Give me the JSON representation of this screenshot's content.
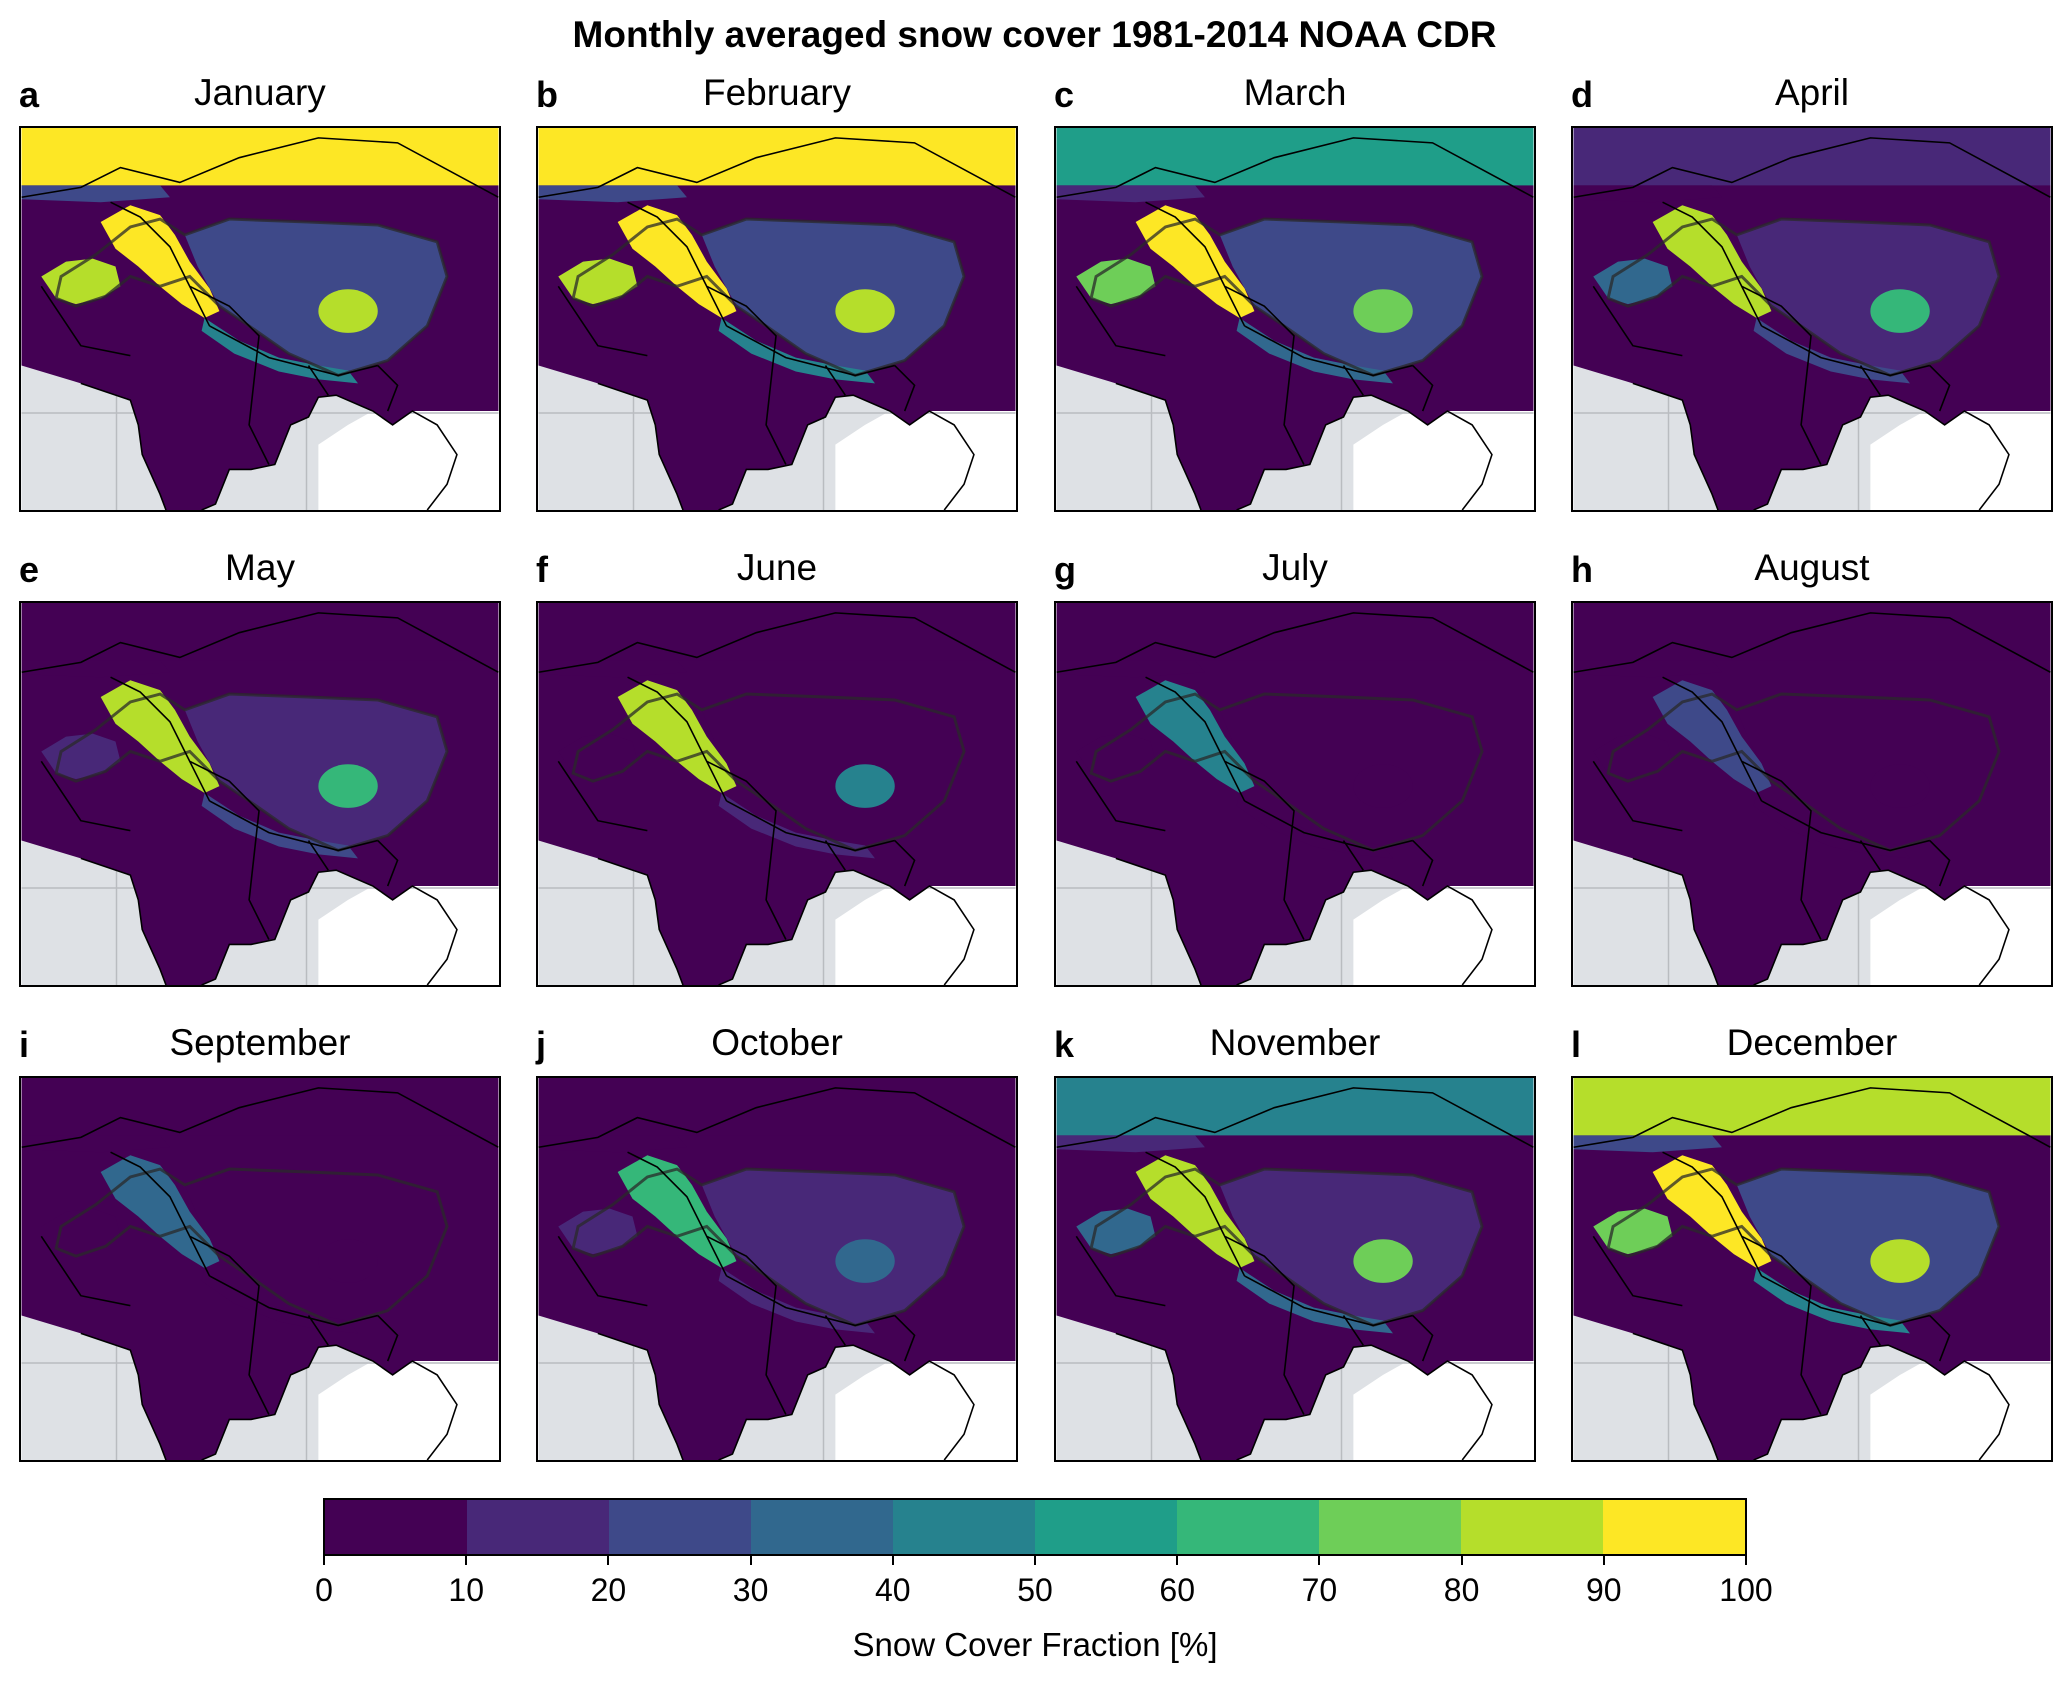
{
  "title": "Monthly averaged snow cover 1981-2014 NOAA CDR",
  "panels": [
    {
      "label": "a",
      "month": "January"
    },
    {
      "label": "b",
      "month": "February"
    },
    {
      "label": "c",
      "month": "March"
    },
    {
      "label": "d",
      "month": "April"
    },
    {
      "label": "e",
      "month": "May"
    },
    {
      "label": "f",
      "month": "June"
    },
    {
      "label": "g",
      "month": "July"
    },
    {
      "label": "h",
      "month": "August"
    },
    {
      "label": "i",
      "month": "September"
    },
    {
      "label": "j",
      "month": "October"
    },
    {
      "label": "k",
      "month": "November"
    },
    {
      "label": "l",
      "month": "December"
    }
  ],
  "colorbar": {
    "label": "Snow Cover Fraction [%]",
    "ticks": [
      "0",
      "10",
      "20",
      "30",
      "40",
      "50",
      "60",
      "70",
      "80",
      "90",
      "100"
    ],
    "colors": [
      "#440154",
      "#482878",
      "#3e4989",
      "#31688e",
      "#26828e",
      "#1f9e89",
      "#35b779",
      "#6ece58",
      "#b5de2b",
      "#fde725"
    ]
  },
  "colors": {
    "background_ocean": "#dee1e5",
    "masked_land": "#ffffff",
    "low_snow": "#440154",
    "high_snow": "#fde725"
  },
  "chart_data": {
    "type": "heatmap",
    "title": "Monthly averaged snow cover 1981-2014 NOAA CDR",
    "colorbar_label": "Snow Cover Fraction [%]",
    "colorbar_range": [
      0,
      100
    ],
    "colorbar_step": 10,
    "panels": [
      {
        "month": "January",
        "regions": {
          "north_band": 92,
          "northwest_lowland": 28,
          "karakoram_himalaya_west": 95,
          "hindu_kush": 82,
          "tibetan_plateau": 22,
          "southeast_tibet": 85,
          "himalaya_arc": 45,
          "south_asia": 2
        }
      },
      {
        "month": "February",
        "regions": {
          "north_band": 92,
          "northwest_lowland": 25,
          "karakoram_himalaya_west": 95,
          "hindu_kush": 85,
          "tibetan_plateau": 22,
          "southeast_tibet": 85,
          "himalaya_arc": 45,
          "south_asia": 2
        }
      },
      {
        "month": "March",
        "regions": {
          "north_band": 55,
          "northwest_lowland": 18,
          "karakoram_himalaya_west": 92,
          "hindu_kush": 70,
          "tibetan_plateau": 20,
          "southeast_tibet": 75,
          "himalaya_arc": 35,
          "south_asia": 2
        }
      },
      {
        "month": "April",
        "regions": {
          "north_band": 15,
          "northwest_lowland": 5,
          "karakoram_himalaya_west": 88,
          "hindu_kush": 30,
          "tibetan_plateau": 15,
          "southeast_tibet": 65,
          "himalaya_arc": 25,
          "south_asia": 2
        }
      },
      {
        "month": "May",
        "regions": {
          "north_band": 5,
          "northwest_lowland": 2,
          "karakoram_himalaya_west": 88,
          "hindu_kush": 15,
          "tibetan_plateau": 12,
          "southeast_tibet": 65,
          "himalaya_arc": 20,
          "south_asia": 1
        }
      },
      {
        "month": "June",
        "regions": {
          "north_band": 2,
          "northwest_lowland": 1,
          "karakoram_himalaya_west": 82,
          "hindu_kush": 8,
          "tibetan_plateau": 5,
          "southeast_tibet": 45,
          "himalaya_arc": 12,
          "south_asia": 1
        }
      },
      {
        "month": "July",
        "regions": {
          "north_band": 1,
          "northwest_lowland": 1,
          "karakoram_himalaya_west": 45,
          "hindu_kush": 5,
          "tibetan_plateau": 3,
          "southeast_tibet": 8,
          "himalaya_arc": 8,
          "south_asia": 1
        }
      },
      {
        "month": "August",
        "regions": {
          "north_band": 1,
          "northwest_lowland": 1,
          "karakoram_himalaya_west": 28,
          "hindu_kush": 3,
          "tibetan_plateau": 2,
          "southeast_tibet": 5,
          "himalaya_arc": 6,
          "south_asia": 1
        }
      },
      {
        "month": "September",
        "regions": {
          "north_band": 1,
          "northwest_lowland": 1,
          "karakoram_himalaya_west": 35,
          "hindu_kush": 5,
          "tibetan_plateau": 3,
          "southeast_tibet": 5,
          "himalaya_arc": 8,
          "south_asia": 1
        }
      },
      {
        "month": "October",
        "regions": {
          "north_band": 8,
          "northwest_lowland": 2,
          "karakoram_himalaya_west": 62,
          "hindu_kush": 12,
          "tibetan_plateau": 12,
          "southeast_tibet": 35,
          "himalaya_arc": 15,
          "south_asia": 1
        }
      },
      {
        "month": "November",
        "regions": {
          "north_band": 45,
          "northwest_lowland": 15,
          "karakoram_himalaya_west": 88,
          "hindu_kush": 35,
          "tibetan_plateau": 18,
          "southeast_tibet": 75,
          "himalaya_arc": 30,
          "south_asia": 2
        }
      },
      {
        "month": "December",
        "regions": {
          "north_band": 88,
          "northwest_lowland": 28,
          "karakoram_himalaya_west": 95,
          "hindu_kush": 78,
          "tibetan_plateau": 20,
          "southeast_tibet": 85,
          "himalaya_arc": 40,
          "south_asia": 2
        }
      }
    ]
  }
}
